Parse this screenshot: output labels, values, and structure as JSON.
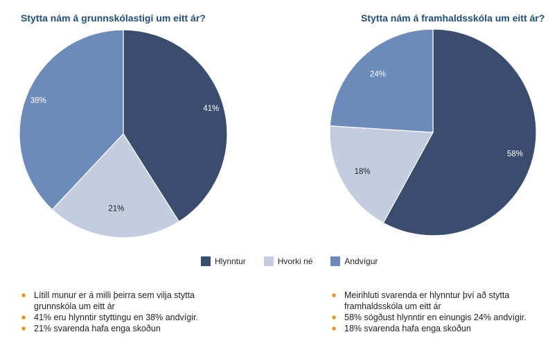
{
  "chart_data": [
    {
      "type": "pie",
      "title": "Stytta nám á grunnskólastigi um eitt ár?",
      "slices": [
        {
          "label": "Hlynntur",
          "value": 41,
          "display": "41%"
        },
        {
          "label": "Hvorki né",
          "value": 21,
          "display": "21%"
        },
        {
          "label": "Andvígur",
          "value": 38,
          "display": "38%"
        }
      ]
    },
    {
      "type": "pie",
      "title": "Stytta nám á framhaldsskóla um eitt ár?",
      "slices": [
        {
          "label": "Hlynntur",
          "value": 58,
          "display": "58%"
        },
        {
          "label": "Hvorki né",
          "value": 18,
          "display": "18%"
        },
        {
          "label": "Andvígur",
          "value": 24,
          "display": "24%"
        }
      ]
    }
  ],
  "legend": [
    {
      "label": "Hlynntur",
      "color": "#3a4d6e"
    },
    {
      "label": "Hvorki né",
      "color": "#c4cde0"
    },
    {
      "label": "Andvígur",
      "color": "#6c8bbb"
    }
  ],
  "notes_left": [
    "Lítill munur er á milli þeirra sem vilja stytta grunnskóla um eitt ár",
    "41% eru hlynntir styttingu en 38% andvígir.",
    "21% svarenda hafa enga skoðun"
  ],
  "notes_right": [
    "Meirihluti svarenda er hlynntur því að stytta framhaldsskóla um eitt ár",
    "58% sögðust hlynntir en einungis 24% andvígir.",
    "18% svarenda hafa enga skoðun"
  ],
  "bullet_glyph": "■"
}
